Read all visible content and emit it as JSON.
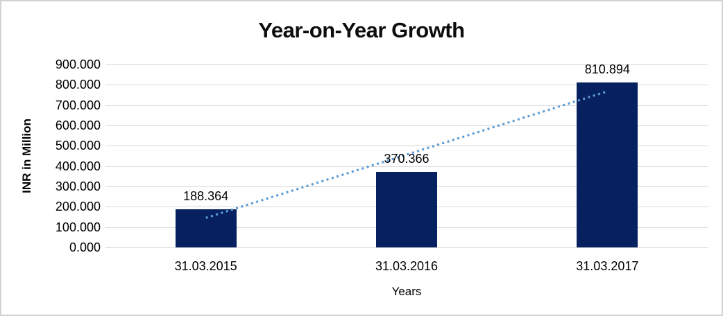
{
  "window": {
    "background_color": "#ffffff",
    "border_color": "#d2d2d2"
  },
  "chart_data": {
    "type": "bar",
    "title": "Year-on-Year Growth",
    "xlabel": "Years",
    "ylabel": "INR in Million",
    "categories": [
      "31.03.2015",
      "31.03.2016",
      "31.03.2017"
    ],
    "values": [
      188.364,
      370.366,
      810.894
    ],
    "value_labels": [
      "188.364",
      "370.366",
      "810.894"
    ],
    "ylim": [
      0,
      900
    ],
    "ytick_step": 100,
    "ytick_labels": [
      "0.000",
      "100.000",
      "200.000",
      "300.000",
      "400.000",
      "500.000",
      "600.000",
      "700.000",
      "800.000",
      "900.000"
    ],
    "grid": true,
    "legend": "none",
    "bar_color": "#072160",
    "gridline_color": "#d9d9d9",
    "text_color": "#000000",
    "trendline": {
      "type": "linear",
      "style": "dotted",
      "color": "#5b9bd5",
      "fit_values": [
        145.276,
        456.541,
        767.806
      ]
    }
  }
}
